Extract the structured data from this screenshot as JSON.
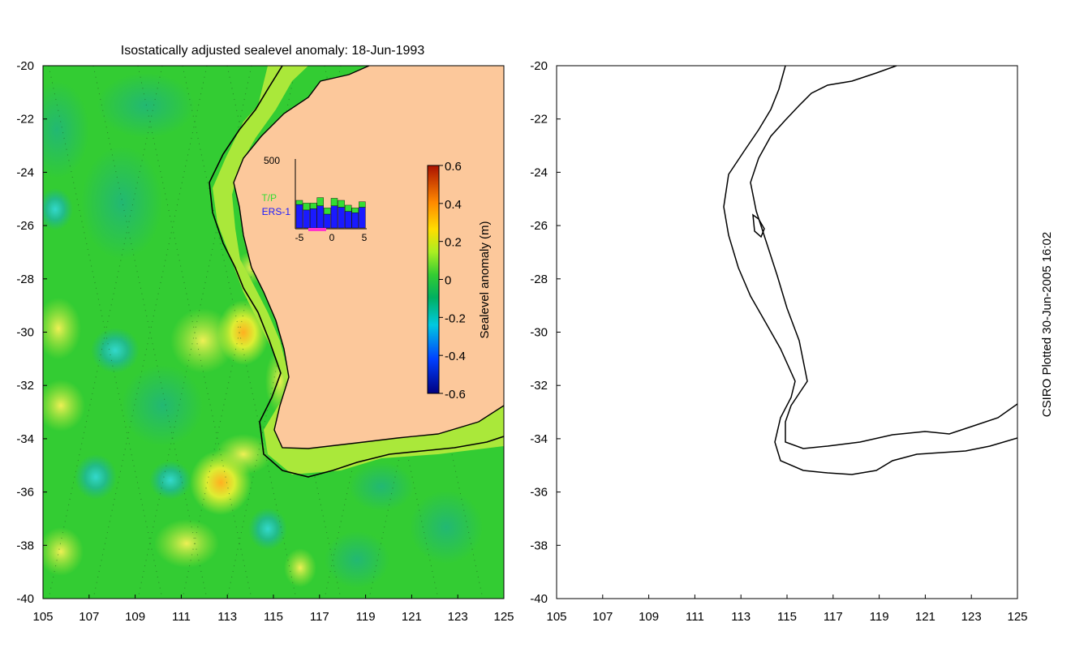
{
  "chart_data": [
    {
      "type": "heatmap",
      "title": "Isostatically adjusted sealevel anomaly: 18-Jun-1993",
      "x_ticks": [
        105,
        107,
        109,
        111,
        113,
        115,
        117,
        119,
        121,
        123,
        125
      ],
      "y_ticks": [
        -20,
        -22,
        -24,
        -26,
        -28,
        -30,
        -32,
        -34,
        -36,
        -38,
        -40
      ],
      "xlim": [
        105,
        125
      ],
      "ylim": [
        -40,
        -20
      ],
      "colorbar": {
        "label": "Sealevel anomaly (m)",
        "ticks": [
          0.6,
          0.4,
          0.2,
          0,
          -0.2,
          -0.4,
          -0.6
        ],
        "range": [
          -0.6,
          0.6
        ]
      },
      "inset": {
        "type": "bar",
        "ymax_label": "500",
        "x_ticks": [
          -5,
          0,
          5
        ],
        "series": [
          {
            "name": "T/P",
            "color": "#33dd33",
            "values": [
              30,
              50,
              40,
              60,
              45,
              55,
              50,
              45,
              35,
              40
            ]
          },
          {
            "name": "ERS-1",
            "color": "#1a1aff",
            "values": [
              170,
              130,
              140,
              160,
              100,
              160,
              150,
              120,
              110,
              150
            ]
          }
        ]
      },
      "colors": {
        "land": "#fcc89b",
        "ocean_base": "#33cc33",
        "coastline": "#000000"
      }
    },
    {
      "type": "line",
      "title": "",
      "x_ticks": [
        105,
        107,
        109,
        111,
        113,
        115,
        117,
        119,
        121,
        123,
        125
      ],
      "y_ticks": [
        -20,
        -22,
        -24,
        -26,
        -28,
        -30,
        -32,
        -34,
        -36,
        -38,
        -40
      ],
      "xlim": [
        105,
        125
      ],
      "ylim": [
        -40,
        -20
      ]
    }
  ],
  "footer": {
    "credit": "CSIRO Plotted 30-Jun-2005 16:02"
  }
}
